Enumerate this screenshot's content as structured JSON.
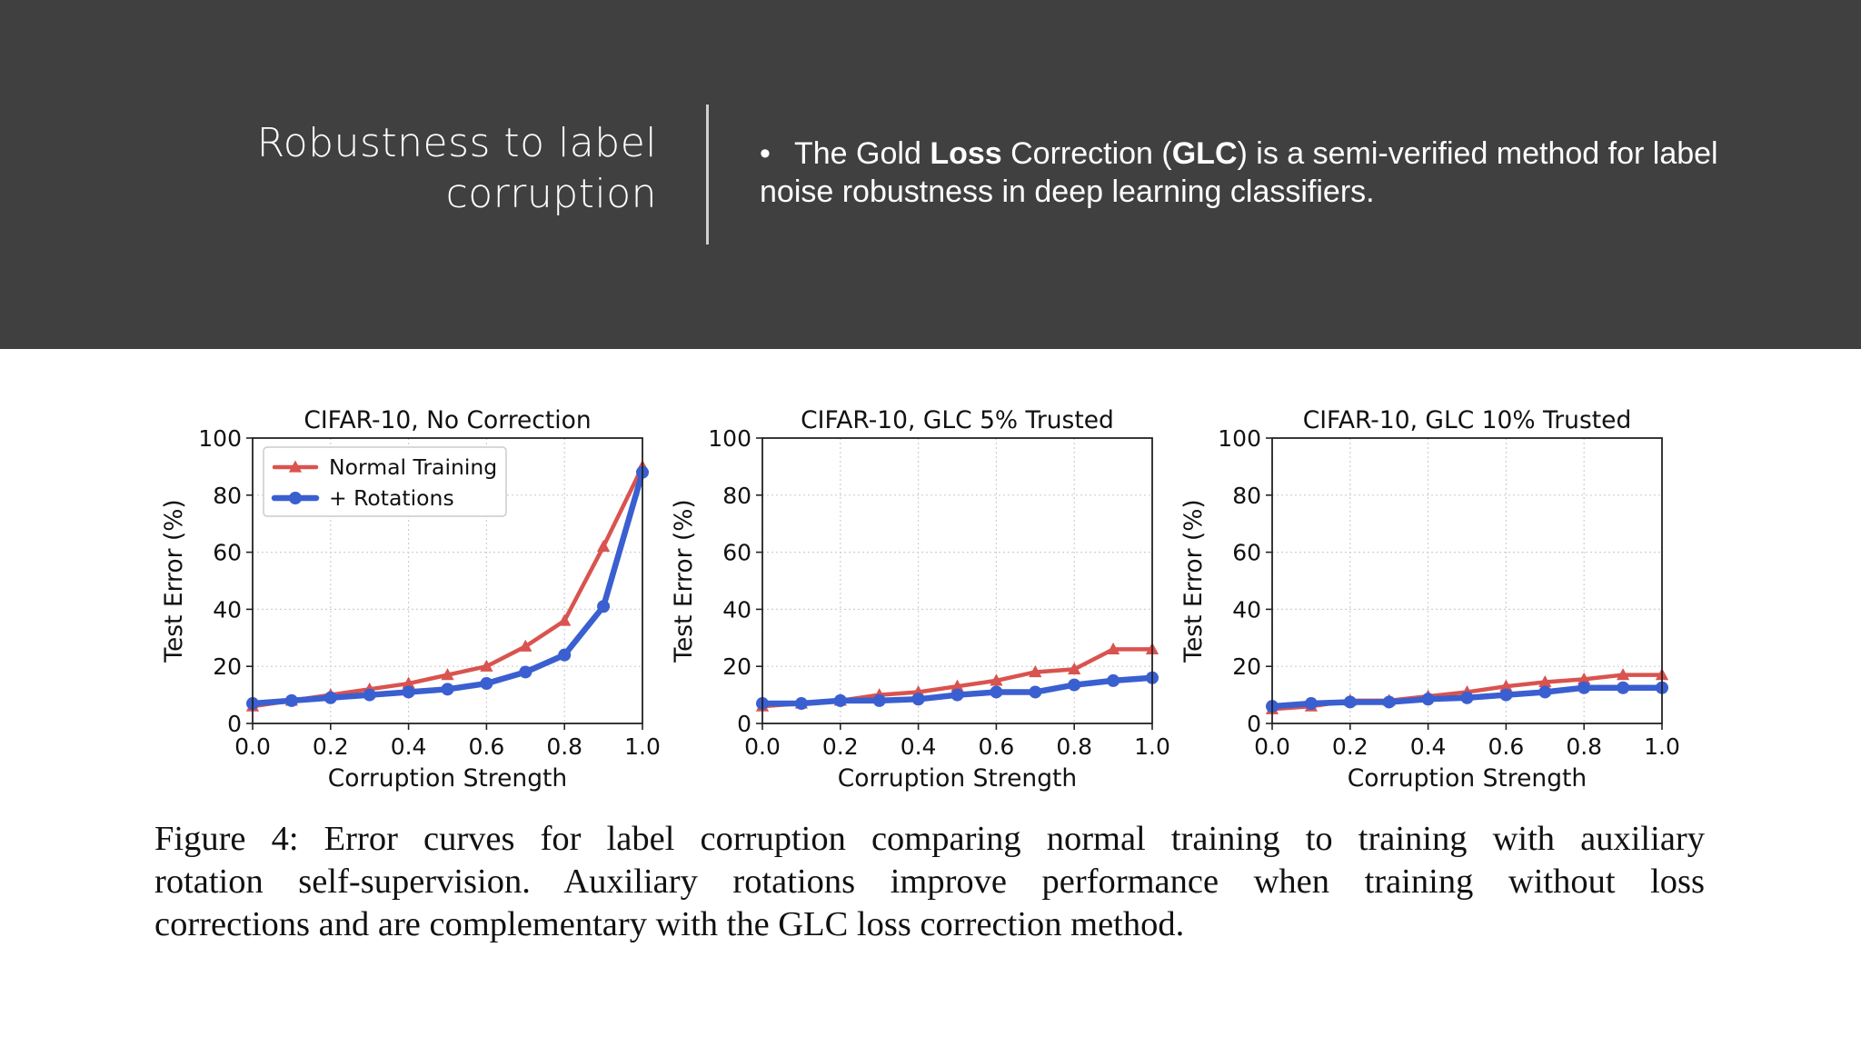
{
  "slide": {
    "title_line1": "Robustness to label",
    "title_line2": "corruption",
    "bullet": {
      "symbol": "•",
      "part1": "The Gold ",
      "bold1": "Loss",
      "part2": " Correction (",
      "bold2": "GLC",
      "part3": ") is a semi-verified method for label noise robustness in deep learning classifiers."
    },
    "caption_lines": [
      "Figure 4:  Error curves for label corruption comparing normal training to training with auxiliary",
      "rotation self-supervision.  Auxiliary rotations improve performance when training without loss",
      "corrections and are complementary with the GLC loss correction method."
    ]
  },
  "colors": {
    "header_bg": "#404040",
    "normal_training": "#d9534f",
    "rotations": "#3a5fd0"
  },
  "chart_data": [
    {
      "type": "line",
      "title": "CIFAR-10, No Correction",
      "xlabel": "Corruption Strength",
      "ylabel": "Test Error (%)",
      "xlim": [
        0.0,
        1.0
      ],
      "ylim": [
        0,
        100
      ],
      "xticks": [
        "0.0",
        "0.2",
        "0.4",
        "0.6",
        "0.8",
        "1.0"
      ],
      "yticks": [
        "0",
        "20",
        "40",
        "60",
        "80",
        "100"
      ],
      "grid": true,
      "legend": "top-left",
      "x": [
        0.0,
        0.1,
        0.2,
        0.3,
        0.4,
        0.5,
        0.6,
        0.7,
        0.8,
        0.9,
        1.0
      ],
      "series": [
        {
          "name": "Normal Training",
          "marker": "triangle",
          "values": [
            6,
            8,
            10,
            12,
            14,
            17,
            20,
            27,
            36,
            62,
            90
          ]
        },
        {
          "name": "+ Rotations",
          "marker": "circle",
          "values": [
            7,
            8,
            9,
            10,
            11,
            12,
            14,
            18,
            24,
            41,
            88
          ]
        }
      ]
    },
    {
      "type": "line",
      "title": "CIFAR-10, GLC 5% Trusted",
      "xlabel": "Corruption Strength",
      "ylabel": "Test Error (%)",
      "xlim": [
        0.0,
        1.0
      ],
      "ylim": [
        0,
        100
      ],
      "xticks": [
        "0.0",
        "0.2",
        "0.4",
        "0.6",
        "0.8",
        "1.0"
      ],
      "yticks": [
        "0",
        "20",
        "40",
        "60",
        "80",
        "100"
      ],
      "grid": true,
      "legend": "none",
      "x": [
        0.0,
        0.1,
        0.2,
        0.3,
        0.4,
        0.5,
        0.6,
        0.7,
        0.8,
        0.9,
        1.0
      ],
      "series": [
        {
          "name": "Normal Training",
          "marker": "triangle",
          "values": [
            6,
            7,
            8,
            10,
            11,
            13,
            15,
            18,
            19,
            26,
            26
          ]
        },
        {
          "name": "+ Rotations",
          "marker": "circle",
          "values": [
            7,
            7,
            8,
            8,
            8.5,
            10,
            11,
            11,
            13.5,
            15,
            16
          ]
        }
      ]
    },
    {
      "type": "line",
      "title": "CIFAR-10, GLC 10% Trusted",
      "xlabel": "Corruption Strength",
      "ylabel": "Test Error (%)",
      "xlim": [
        0.0,
        1.0
      ],
      "ylim": [
        0,
        100
      ],
      "xticks": [
        "0.0",
        "0.2",
        "0.4",
        "0.6",
        "0.8",
        "1.0"
      ],
      "yticks": [
        "0",
        "20",
        "40",
        "60",
        "80",
        "100"
      ],
      "grid": true,
      "legend": "none",
      "x": [
        0.0,
        0.1,
        0.2,
        0.3,
        0.4,
        0.5,
        0.6,
        0.7,
        0.8,
        0.9,
        1.0
      ],
      "series": [
        {
          "name": "Normal Training",
          "marker": "triangle",
          "values": [
            5,
            6,
            8,
            8,
            9.5,
            11,
            13,
            14.5,
            15.5,
            17,
            17
          ]
        },
        {
          "name": "+ Rotations",
          "marker": "circle",
          "values": [
            6,
            7,
            7.5,
            7.5,
            8.5,
            9,
            10,
            11,
            12.5,
            12.5,
            12.5
          ]
        }
      ]
    }
  ]
}
